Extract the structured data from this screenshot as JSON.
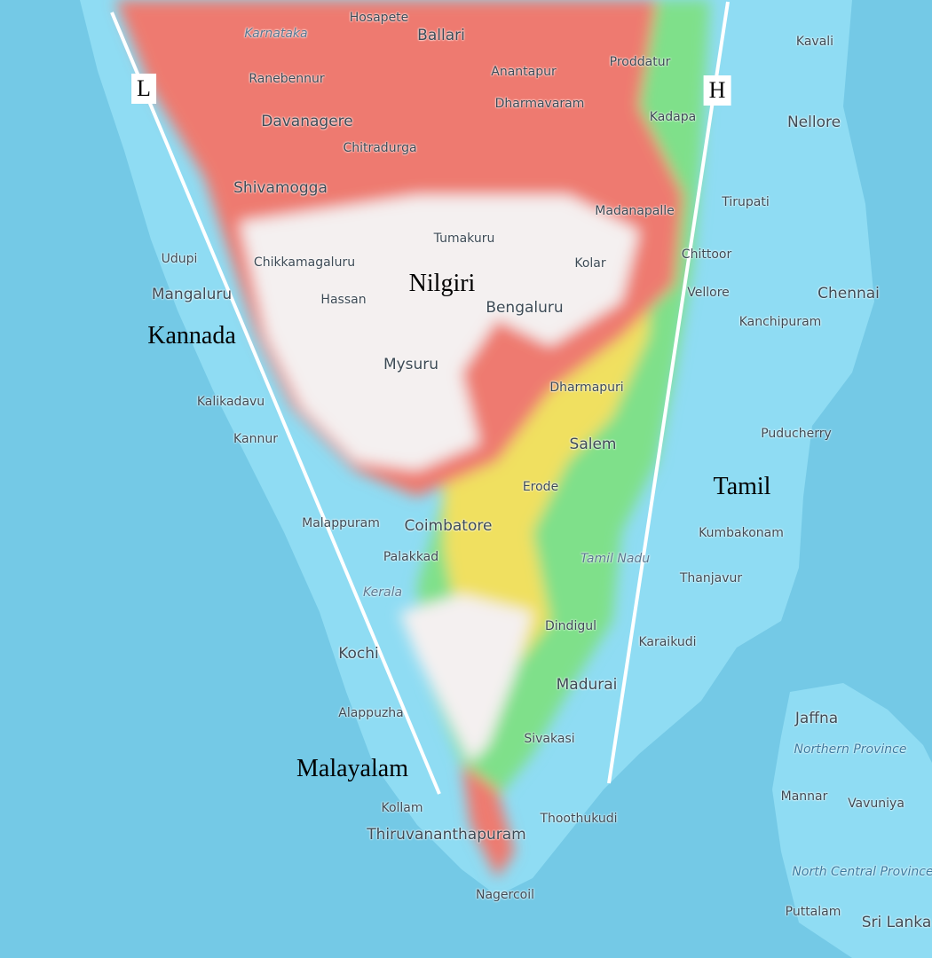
{
  "colors": {
    "sea": "#74c9e6",
    "lowland": "#8fdcf3",
    "low_highland": "#7fe08a",
    "mid_highland": "#f0e060",
    "high": "#ee7a70",
    "peak": "#f4f0f0",
    "lines": "#ffffff"
  },
  "cities": [
    "Hosapete",
    "Ballari",
    "Ranebennur",
    "Anantapur",
    "Proddatur",
    "Kavali",
    "Dharmavaram",
    "Kadapa",
    "Nellore",
    "Davanagere",
    "Chitradurga",
    "Shivamogga",
    "Madanapalle",
    "Tirupati",
    "Tumakuru",
    "Kolar",
    "Chittoor",
    "Udupi",
    "Chikkamagaluru",
    "Mangaluru",
    "Hassan",
    "Bengaluru",
    "Vellore",
    "Chennai",
    "Kanchipuram",
    "Mysuru",
    "Kalikadavu",
    "Dharmapuri",
    "Kannur",
    "Puducherry",
    "Salem",
    "Erode",
    "Malappuram",
    "Coimbatore",
    "Kumbakonam",
    "Palakkad",
    "Thanjavur",
    "Dindigul",
    "Karaikudi",
    "Kochi",
    "Madurai",
    "Jaffna",
    "Alappuzha",
    "Sivakasi",
    "Mannar",
    "Vavuniya",
    "Kollam",
    "Thoothukudi",
    "Thiruvananthapuram",
    "Nagercoil",
    "Puttalam",
    "Sri Lanka"
  ],
  "states": [
    "Karnataka",
    "Tamil Nadu",
    "Kerala",
    "Northern Province",
    "North Central Province"
  ],
  "overlay": {
    "nilgiri": "Nilgiri",
    "kannada": "Kannada",
    "tamil": "Tamil",
    "malayalam": "Malayalam",
    "L": "L",
    "H": "H"
  }
}
